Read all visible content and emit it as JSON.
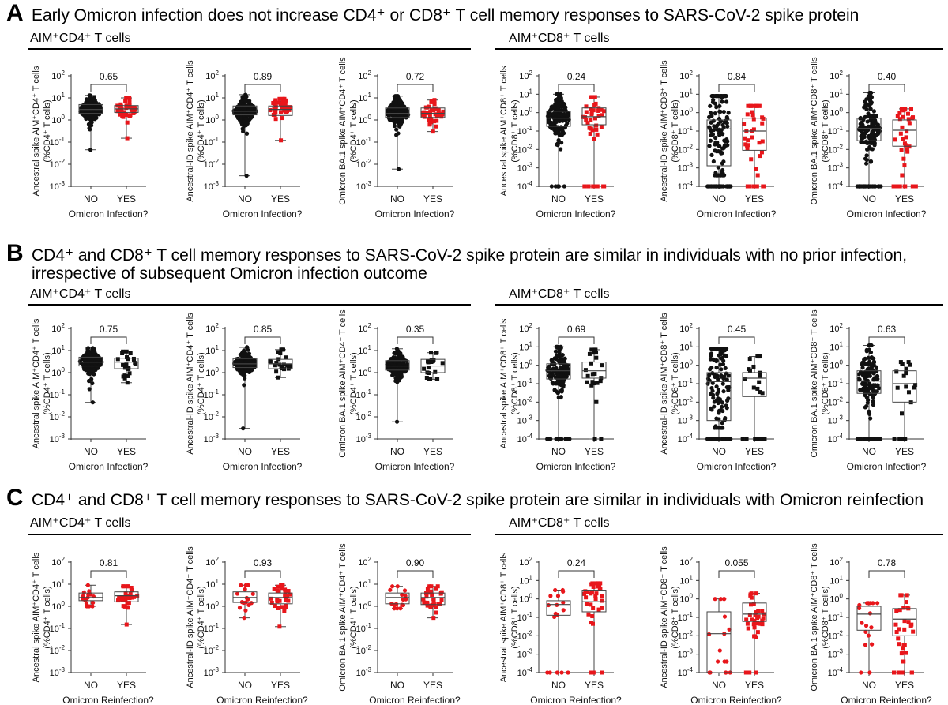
{
  "sections": [
    {
      "letter": "A",
      "title_lines": [
        "Early Omicron infection does not increase CD4⁺ or CD8⁺ T cell memory responses to SARS-CoV-2 spike protein"
      ],
      "cd4_header": "AIM⁺CD4⁺ T cells",
      "cd8_header": "AIM⁺CD8⁺ T cells"
    },
    {
      "letter": "B",
      "title_lines": [
        "CD4⁺ and CD8⁺ T cell memory responses to SARS-CoV-2 spike protein are similar in individuals with no prior infection,",
        "irrespective of subsequent Omicron infection outcome"
      ],
      "cd4_header": "AIM⁺CD4⁺ T cells",
      "cd8_header": "AIM⁺CD8⁺ T cells"
    },
    {
      "letter": "C",
      "title_lines": [
        "CD4⁺ and CD8⁺ T cell memory responses to SARS-CoV-2 spike protein are similar in individuals with Omicron reinfection"
      ],
      "cd4_header": "AIM⁺CD4⁺ T cells",
      "cd8_header": "AIM⁺CD8⁺ T cells"
    }
  ],
  "colors": {
    "black": "#111111",
    "red": "#e8161b"
  },
  "chart_data": [
    {
      "type": "box",
      "section": "A",
      "ylabel": [
        "Ancestral spike AIM⁺CD4⁺ T cells",
        "(%CD4⁺ T cells)"
      ],
      "xlabel": "Omicron Infection?",
      "categories": [
        "NO",
        "YES"
      ],
      "yscale": "log",
      "ylim_exp": [
        -3,
        2
      ],
      "p_value": "0.65",
      "groups": [
        {
          "min": 0.045,
          "q1": 2,
          "median": 3,
          "q3": 5,
          "max": 13,
          "n": 300,
          "zero_frac": 0,
          "color": "black",
          "marker": "circle"
        },
        {
          "min": 0.15,
          "q1": 2.2,
          "median": 3.2,
          "q3": 4.5,
          "max": 10,
          "n": 40,
          "zero_frac": 0,
          "color": "red",
          "marker": "square"
        }
      ]
    },
    {
      "type": "box",
      "section": "A",
      "ylabel": [
        "Ancestral-ID spike AIM⁺CD4⁺ T cells",
        "(%CD4⁺ T cells)"
      ],
      "xlabel": "Omicron Infection?",
      "categories": [
        "NO",
        "YES"
      ],
      "yscale": "log",
      "ylim_exp": [
        -3,
        2
      ],
      "p_value": "0.89",
      "groups": [
        {
          "min": 0.003,
          "q1": 1.7,
          "median": 2.5,
          "q3": 4.3,
          "max": 14,
          "n": 300,
          "zero_frac": 0,
          "color": "black",
          "marker": "circle"
        },
        {
          "min": 0.12,
          "q1": 1.6,
          "median": 3,
          "q3": 4.3,
          "max": 9,
          "n": 40,
          "zero_frac": 0,
          "color": "red",
          "marker": "square"
        }
      ]
    },
    {
      "type": "box",
      "section": "A",
      "ylabel": [
        "Omicron BA.1 spike AIM⁺CD4⁺ T cells",
        "(%CD4⁺ T cells)"
      ],
      "xlabel": "Omicron Infection?",
      "categories": [
        "NO",
        "YES"
      ],
      "yscale": "log",
      "ylim_exp": [
        -3,
        2
      ],
      "p_value": "0.72",
      "groups": [
        {
          "min": 0.006,
          "q1": 1.3,
          "median": 2,
          "q3": 3.5,
          "max": 12,
          "n": 300,
          "zero_frac": 0,
          "color": "black",
          "marker": "circle"
        },
        {
          "min": 0.3,
          "q1": 1.3,
          "median": 2,
          "q3": 3.5,
          "max": 8,
          "n": 40,
          "zero_frac": 0,
          "color": "red",
          "marker": "square"
        }
      ]
    },
    {
      "type": "box",
      "section": "A",
      "ylabel": [
        "Ancestral spike AIM⁺CD8⁺ T cells",
        "(%CD8⁺ T cells)"
      ],
      "xlabel": "Omicron Infection?",
      "categories": [
        "NO",
        "YES"
      ],
      "yscale": "log",
      "ylim_exp": [
        -4,
        2
      ],
      "p_value": "0.24",
      "groups": [
        {
          "min": 0.0001,
          "q1": 0.18,
          "median": 0.5,
          "q3": 1.2,
          "max": 10,
          "n": 300,
          "zero_frac": 0.05,
          "color": "black",
          "marker": "circle"
        },
        {
          "min": 0.0001,
          "q1": 0.22,
          "median": 0.6,
          "q3": 1.8,
          "max": 7,
          "n": 40,
          "zero_frac": 0.12,
          "color": "red",
          "marker": "square"
        }
      ]
    },
    {
      "type": "box",
      "section": "A",
      "ylabel": [
        "Ancestral-ID spike AIM⁺CD8⁺ T cells",
        "(%CD8⁺ T cells)"
      ],
      "xlabel": "Omicron Infection?",
      "categories": [
        "NO",
        "YES"
      ],
      "yscale": "log",
      "ylim_exp": [
        -4,
        2
      ],
      "p_value": "0.84",
      "groups": [
        {
          "min": 0.0001,
          "q1": 0.0013,
          "median": 0.13,
          "q3": 0.4,
          "max": 8,
          "n": 300,
          "zero_frac": 0.25,
          "color": "black",
          "marker": "circle"
        },
        {
          "min": 0.0001,
          "q1": 0.009,
          "median": 0.1,
          "q3": 0.5,
          "max": 2.3,
          "n": 40,
          "zero_frac": 0.2,
          "color": "red",
          "marker": "square"
        }
      ]
    },
    {
      "type": "box",
      "section": "A",
      "ylabel": [
        "Omicron BA.1 spike AIM⁺CD8⁺ T cells",
        "(%CD8⁺ T cells)"
      ],
      "xlabel": "Omicron Infection?",
      "categories": [
        "NO",
        "YES"
      ],
      "yscale": "log",
      "ylim_exp": [
        -4,
        2
      ],
      "p_value": "0.40",
      "groups": [
        {
          "min": 0.0001,
          "q1": 0.03,
          "median": 0.14,
          "q3": 0.5,
          "max": 12,
          "n": 300,
          "zero_frac": 0.2,
          "color": "black",
          "marker": "circle"
        },
        {
          "min": 0.0001,
          "q1": 0.015,
          "median": 0.11,
          "q3": 0.4,
          "max": 1.6,
          "n": 40,
          "zero_frac": 0.25,
          "color": "red",
          "marker": "square"
        }
      ]
    },
    {
      "type": "box",
      "section": "B",
      "ylabel": [
        "Ancestral spike AIM⁺CD4⁺ T cells",
        "(%CD4⁺ T cells)"
      ],
      "xlabel": "Omicron Infection?",
      "categories": [
        "NO",
        "YES"
      ],
      "yscale": "log",
      "ylim_exp": [
        -3,
        2
      ],
      "p_value": "0.75",
      "groups": [
        {
          "min": 0.045,
          "q1": 2,
          "median": 3,
          "q3": 5,
          "max": 13,
          "n": 280,
          "zero_frac": 0,
          "color": "black",
          "marker": "circle"
        },
        {
          "min": 0.35,
          "q1": 1.5,
          "median": 3,
          "q3": 4.5,
          "max": 9,
          "n": 22,
          "zero_frac": 0,
          "color": "black",
          "marker": "square"
        }
      ]
    },
    {
      "type": "box",
      "section": "B",
      "ylabel": [
        "Ancestral-ID spike AIM⁺CD4⁺ T cells",
        "(%CD4⁺ T cells)"
      ],
      "xlabel": "Omicron Infection?",
      "categories": [
        "NO",
        "YES"
      ],
      "yscale": "log",
      "ylim_exp": [
        -3,
        2
      ],
      "p_value": "0.85",
      "groups": [
        {
          "min": 0.003,
          "q1": 1.7,
          "median": 2.5,
          "q3": 4.3,
          "max": 14,
          "n": 280,
          "zero_frac": 0,
          "color": "black",
          "marker": "circle"
        },
        {
          "min": 0.6,
          "q1": 1.5,
          "median": 2.5,
          "q3": 4,
          "max": 11,
          "n": 22,
          "zero_frac": 0,
          "color": "black",
          "marker": "square"
        }
      ]
    },
    {
      "type": "box",
      "section": "B",
      "ylabel": [
        "Omicron BA.1 spike AIM⁺CD4⁺ T cells",
        "(%CD4⁺ T cells)"
      ],
      "xlabel": "Omicron Infection?",
      "categories": [
        "NO",
        "YES"
      ],
      "yscale": "log",
      "ylim_exp": [
        -3,
        2
      ],
      "p_value": "0.35",
      "groups": [
        {
          "min": 0.006,
          "q1": 1.3,
          "median": 2,
          "q3": 3.5,
          "max": 12,
          "n": 280,
          "zero_frac": 0,
          "color": "black",
          "marker": "circle"
        },
        {
          "min": 0.5,
          "q1": 1,
          "median": 2,
          "q3": 4,
          "max": 8,
          "n": 18,
          "zero_frac": 0,
          "color": "black",
          "marker": "square"
        }
      ]
    },
    {
      "type": "box",
      "section": "B",
      "ylabel": [
        "Ancestral spike AIM⁺CD8⁺ T cells",
        "(%CD8⁺ T cells)"
      ],
      "xlabel": "Omicron Infection?",
      "categories": [
        "NO",
        "YES"
      ],
      "yscale": "log",
      "ylim_exp": [
        -4,
        2
      ],
      "p_value": "0.69",
      "groups": [
        {
          "min": 0.0001,
          "q1": 0.18,
          "median": 0.5,
          "q3": 1.2,
          "max": 10,
          "n": 280,
          "zero_frac": 0.05,
          "color": "black",
          "marker": "circle"
        },
        {
          "min": 0.0001,
          "q1": 0.2,
          "median": 0.5,
          "q3": 1.5,
          "max": 7,
          "n": 22,
          "zero_frac": 0.05,
          "color": "black",
          "marker": "square"
        }
      ]
    },
    {
      "type": "box",
      "section": "B",
      "ylabel": [
        "Ancestral-ID spike AIM⁺CD8⁺ T cells",
        "(%CD8⁺ T cells)"
      ],
      "xlabel": "Omicron Infection?",
      "categories": [
        "NO",
        "YES"
      ],
      "yscale": "log",
      "ylim_exp": [
        -4,
        2
      ],
      "p_value": "0.45",
      "groups": [
        {
          "min": 0.0001,
          "q1": 0.001,
          "median": 0.13,
          "q3": 0.4,
          "max": 8,
          "n": 280,
          "zero_frac": 0.25,
          "color": "black",
          "marker": "circle"
        },
        {
          "min": 0.0001,
          "q1": 0.02,
          "median": 0.2,
          "q3": 0.4,
          "max": 3,
          "n": 22,
          "zero_frac": 0.2,
          "color": "black",
          "marker": "square"
        }
      ]
    },
    {
      "type": "box",
      "section": "B",
      "ylabel": [
        "Omicron BA.1 spike AIM⁺CD8⁺ T cells",
        "(%CD8⁺ T cells)"
      ],
      "xlabel": "Omicron Infection?",
      "categories": [
        "NO",
        "YES"
      ],
      "yscale": "log",
      "ylim_exp": [
        -4,
        2
      ],
      "p_value": "0.63",
      "groups": [
        {
          "min": 0.0001,
          "q1": 0.03,
          "median": 0.14,
          "q3": 0.5,
          "max": 12,
          "n": 280,
          "zero_frac": 0.2,
          "color": "black",
          "marker": "circle"
        },
        {
          "min": 0.0001,
          "q1": 0.01,
          "median": 0.1,
          "q3": 0.5,
          "max": 1.5,
          "n": 18,
          "zero_frac": 0.17,
          "color": "black",
          "marker": "square"
        }
      ]
    },
    {
      "type": "box",
      "section": "C",
      "ylabel": [
        "Ancestral spike AIM⁺CD4⁺ T cells",
        "(%CD4⁺ T cells)"
      ],
      "xlabel": "Omicron Reinfection?",
      "categories": [
        "NO",
        "YES"
      ],
      "yscale": "log",
      "ylim_exp": [
        -3,
        2
      ],
      "p_value": "0.81",
      "groups": [
        {
          "min": 1,
          "q1": 1.8,
          "median": 2.5,
          "q3": 4,
          "max": 9,
          "n": 15,
          "zero_frac": 0,
          "color": "red",
          "marker": "circle"
        },
        {
          "min": 0.15,
          "q1": 1.6,
          "median": 3,
          "q3": 4.5,
          "max": 8,
          "n": 30,
          "zero_frac": 0,
          "color": "red",
          "marker": "square"
        }
      ]
    },
    {
      "type": "box",
      "section": "C",
      "ylabel": [
        "Ancestral-ID spike AIM⁺CD4⁺ T cells",
        "(%CD4⁺ T cells)"
      ],
      "xlabel": "Omicron Reinfection?",
      "categories": [
        "NO",
        "YES"
      ],
      "yscale": "log",
      "ylim_exp": [
        -3,
        2
      ],
      "p_value": "0.93",
      "groups": [
        {
          "min": 0.3,
          "q1": 1.5,
          "median": 2.5,
          "q3": 4.5,
          "max": 9,
          "n": 15,
          "zero_frac": 0,
          "color": "red",
          "marker": "circle"
        },
        {
          "min": 0.12,
          "q1": 1.3,
          "median": 2.5,
          "q3": 4,
          "max": 9,
          "n": 30,
          "zero_frac": 0,
          "color": "red",
          "marker": "square"
        }
      ]
    },
    {
      "type": "box",
      "section": "C",
      "ylabel": [
        "Omicron BA.1 spike AIM⁺CD4⁺ T cells",
        "(%CD4⁺ T cells)"
      ],
      "xlabel": "Omicron Reinfection?",
      "categories": [
        "NO",
        "YES"
      ],
      "yscale": "log",
      "ylim_exp": [
        -3,
        2
      ],
      "p_value": "0.90",
      "groups": [
        {
          "min": 0.8,
          "q1": 1.3,
          "median": 2.5,
          "q3": 4,
          "max": 8,
          "n": 15,
          "zero_frac": 0,
          "color": "red",
          "marker": "circle"
        },
        {
          "min": 0.3,
          "q1": 1.2,
          "median": 2.5,
          "q3": 4,
          "max": 8,
          "n": 30,
          "zero_frac": 0,
          "color": "red",
          "marker": "square"
        }
      ]
    },
    {
      "type": "box",
      "section": "C",
      "ylabel": [
        "Ancestral spike AIM⁺CD8⁺ T cells",
        "(%CD8⁺ T cells)"
      ],
      "xlabel": "Omicron Reinfection?",
      "categories": [
        "NO",
        "YES"
      ],
      "yscale": "log",
      "ylim_exp": [
        -4,
        2
      ],
      "p_value": "0.24",
      "groups": [
        {
          "min": 0.0001,
          "q1": 0.13,
          "median": 0.5,
          "q3": 0.8,
          "max": 3,
          "n": 15,
          "zero_frac": 0.2,
          "color": "red",
          "marker": "circle"
        },
        {
          "min": 0.0001,
          "q1": 0.2,
          "median": 0.7,
          "q3": 3,
          "max": 7,
          "n": 32,
          "zero_frac": 0.06,
          "color": "red",
          "marker": "square"
        }
      ]
    },
    {
      "type": "box",
      "section": "C",
      "ylabel": [
        "Ancestral-ID spike AIM⁺CD8⁺ T cells",
        "(%CD8⁺ T cells)"
      ],
      "xlabel": "Omicron Reinfection?",
      "categories": [
        "NO",
        "YES"
      ],
      "yscale": "log",
      "ylim_exp": [
        -4,
        2
      ],
      "p_value": "0.055",
      "groups": [
        {
          "min": 0.0001,
          "q1": 0.0001,
          "median": 0.013,
          "q3": 0.2,
          "max": 1,
          "n": 15,
          "zero_frac": 0.45,
          "color": "red",
          "marker": "circle"
        },
        {
          "min": 0.0001,
          "q1": 0.06,
          "median": 0.15,
          "q3": 0.6,
          "max": 2,
          "n": 32,
          "zero_frac": 0.15,
          "color": "red",
          "marker": "square"
        }
      ]
    },
    {
      "type": "box",
      "section": "C",
      "ylabel": [
        "Omicron BA.1 spike AIM⁺CD8⁺ T cells",
        "(%CD8⁺ T cells)"
      ],
      "xlabel": "Omicron Reinfection?",
      "categories": [
        "NO",
        "YES"
      ],
      "yscale": "log",
      "ylim_exp": [
        -4,
        2
      ],
      "p_value": "0.78",
      "groups": [
        {
          "min": 0.0001,
          "q1": 0.02,
          "median": 0.15,
          "q3": 0.4,
          "max": 0.6,
          "n": 15,
          "zero_frac": 0.2,
          "color": "red",
          "marker": "circle"
        },
        {
          "min": 0.0001,
          "q1": 0.01,
          "median": 0.08,
          "q3": 0.3,
          "max": 1.6,
          "n": 32,
          "zero_frac": 0.2,
          "color": "red",
          "marker": "square"
        }
      ]
    }
  ]
}
